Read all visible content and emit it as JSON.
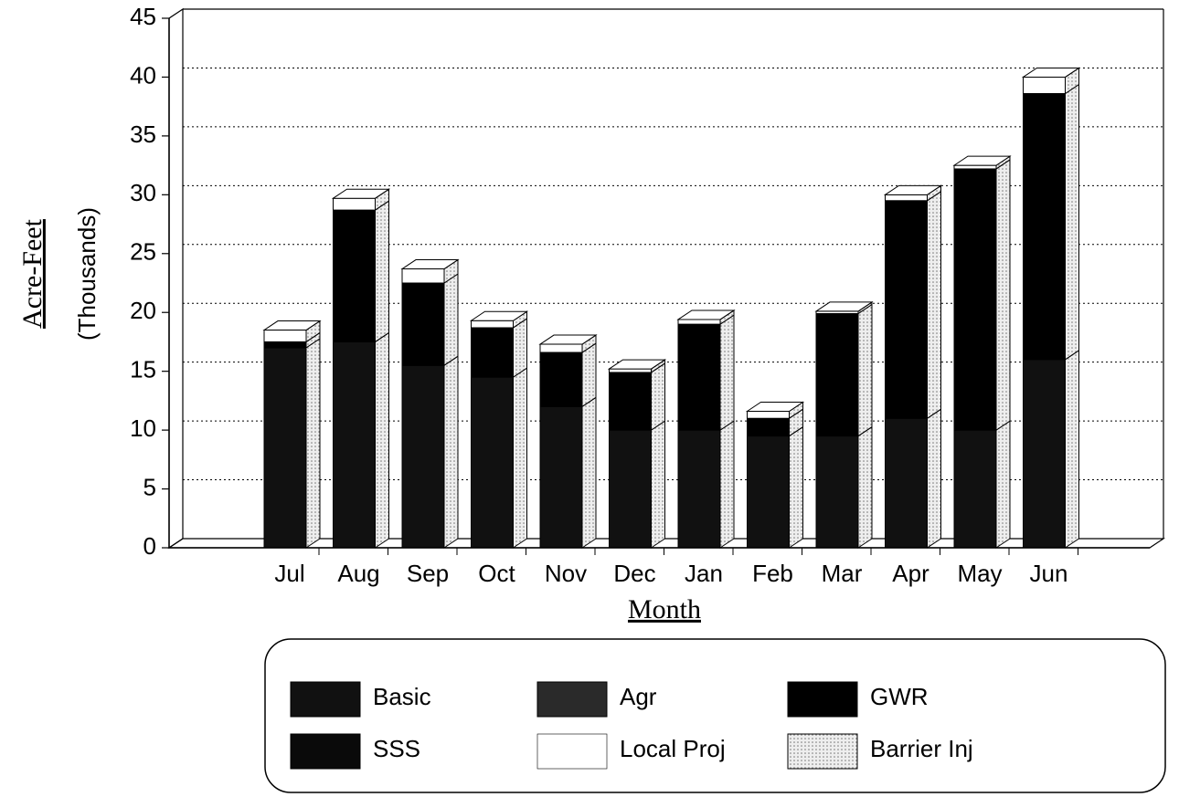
{
  "chart_data": {
    "type": "stacked_bar_3d",
    "y_label": "Acre-Feet",
    "y_sublabel": "(Thousands)",
    "x_label": "Month",
    "categories": [
      "Jul",
      "Aug",
      "Sep",
      "Oct",
      "Nov",
      "Dec",
      "Jan",
      "Feb",
      "Mar",
      "Apr",
      "May",
      "Jun"
    ],
    "series": [
      {
        "name": "Basic",
        "color": "#111111",
        "values": [
          17,
          17.5,
          15.5,
          14.5,
          12,
          10,
          10,
          9.5,
          9.5,
          11,
          10,
          16
        ]
      },
      {
        "name": "Agr",
        "color": "#2a2a2a",
        "values": [
          0,
          0,
          0,
          0,
          0,
          0,
          0,
          0,
          0,
          0,
          0,
          0
        ]
      },
      {
        "name": "GWR",
        "color": "#000000",
        "values": [
          0.5,
          11.2,
          7,
          4.2,
          4.6,
          4.9,
          9,
          1.5,
          10.4,
          18.5,
          22.2,
          22.6
        ]
      },
      {
        "name": "SSS",
        "color": "#0a0a0a",
        "values": [
          0,
          0,
          0,
          0,
          0,
          0,
          0,
          0,
          0,
          0,
          0,
          0
        ]
      },
      {
        "name": "Local Proj",
        "color": "#ffffff",
        "values": [
          1,
          1,
          1.2,
          0.6,
          0.7,
          0.3,
          0.4,
          0.6,
          0.2,
          0.5,
          0.3,
          1.4
        ]
      },
      {
        "name": "Barrier Inj",
        "color": "#cfcfcf",
        "values": [
          0,
          0,
          0,
          0,
          0,
          0,
          0,
          0,
          0,
          0,
          0,
          0
        ]
      }
    ],
    "ylim": [
      0,
      45
    ],
    "yticks": [
      0,
      5,
      10,
      15,
      20,
      25,
      30,
      35,
      40,
      45
    ],
    "grid": true
  }
}
